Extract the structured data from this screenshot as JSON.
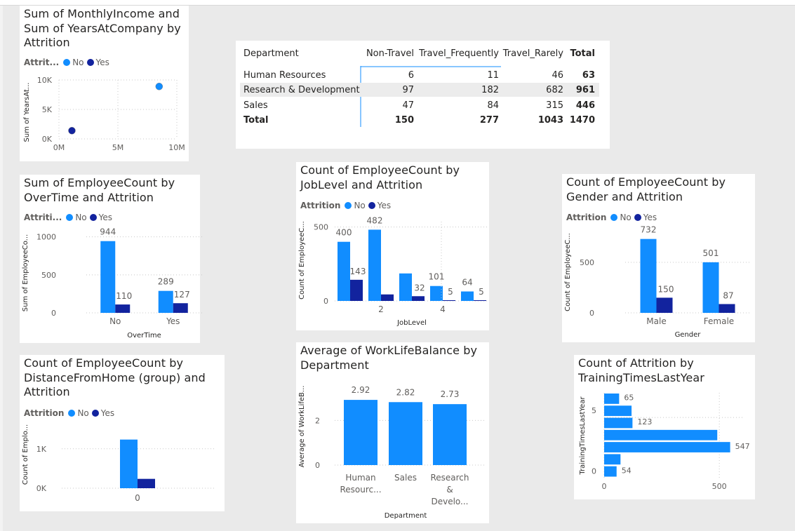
{
  "colors": {
    "no": "#118dff",
    "yes": "#12239e",
    "grid": "#c8c8c8",
    "axis": "#605e5c",
    "dark": "#252423"
  },
  "scatter": {
    "title": "Sum of MonthlyIncome and\nSum of YearsAtCompany by\nAttrition",
    "legend_title": "Attrit...",
    "legend_items": [
      "No",
      "Yes"
    ],
    "y_axis_title": "Sum of YearsAt...",
    "chart_data": {
      "type": "scatter",
      "series": [
        {
          "name": "No",
          "x": [
            8500000
          ],
          "y": [
            8900
          ]
        },
        {
          "name": "Yes",
          "x": [
            1100000
          ],
          "y": [
            1400
          ]
        }
      ],
      "x_ticks": [
        "0M",
        "5M",
        "10M"
      ],
      "y_ticks": [
        "0K",
        "5K",
        "10K"
      ],
      "xlim": [
        0,
        10000000
      ],
      "ylim": [
        0,
        10000
      ]
    }
  },
  "matrix": {
    "headers": [
      "Department",
      "Non-Travel",
      "Travel_Frequently",
      "Travel_Rarely",
      "Total"
    ],
    "rows": [
      [
        "Human Resources",
        "6",
        "11",
        "46",
        "63"
      ],
      [
        "Research & Development",
        "97",
        "182",
        "682",
        "961"
      ],
      [
        "Sales",
        "47",
        "84",
        "315",
        "446"
      ]
    ],
    "total_row": [
      "Total",
      "150",
      "277",
      "1043",
      "1470"
    ]
  },
  "overtime": {
    "title": "Sum of EmployeeCount by\nOverTime and Attrition",
    "legend_title": "Attriti...",
    "legend_items": [
      "No",
      "Yes"
    ],
    "y_axis_title": "Sum of EmployeeCo...",
    "x_axis_title": "OverTime",
    "chart_data": {
      "type": "bar",
      "categories": [
        "No",
        "Yes"
      ],
      "series": [
        {
          "name": "No",
          "values": [
            944,
            289
          ]
        },
        {
          "name": "Yes",
          "values": [
            110,
            127
          ]
        }
      ],
      "y_ticks": [
        0,
        500,
        1000
      ],
      "ylim": [
        0,
        1080
      ]
    }
  },
  "joblevel": {
    "title": "Count of EmployeeCount by\nJobLevel and Attrition",
    "legend_title": "Attrition",
    "legend_items": [
      "No",
      "Yes"
    ],
    "y_axis_title": "Count of EmployeeC...",
    "x_axis_title": "JobLevel",
    "chart_data": {
      "type": "bar",
      "categories": [
        "1",
        "2",
        "3",
        "4",
        "5"
      ],
      "x_tick_labels": [
        "",
        "2",
        "",
        "4",
        ""
      ],
      "series": [
        {
          "name": "No",
          "values": [
            400,
            482,
            186,
            101,
            64
          ]
        },
        {
          "name": "Yes",
          "values": [
            143,
            44,
            32,
            5,
            5
          ]
        }
      ],
      "value_labels": {
        "No": [
          "400",
          "482",
          "",
          "101",
          "64"
        ],
        "Yes": [
          "143",
          "",
          "32",
          "5",
          "5"
        ]
      },
      "y_ticks": [
        0,
        500
      ],
      "ylim": [
        0,
        560
      ]
    }
  },
  "gender": {
    "title": "Count of EmployeeCount by\nGender and Attrition",
    "legend_title": "Attrition",
    "legend_items": [
      "No",
      "Yes"
    ],
    "y_axis_title": "Count of EmployeeC...",
    "x_axis_title": "Gender",
    "chart_data": {
      "type": "bar",
      "categories": [
        "Male",
        "Female"
      ],
      "series": [
        {
          "name": "No",
          "values": [
            732,
            501
          ]
        },
        {
          "name": "Yes",
          "values": [
            150,
            87
          ]
        }
      ],
      "y_ticks": [
        0,
        500
      ],
      "ylim": [
        0,
        820
      ]
    }
  },
  "distance": {
    "title": "Count of EmployeeCount by\nDistanceFromHome (group) and\nAttrition",
    "legend_title": "Attrition",
    "legend_items": [
      "No",
      "Yes"
    ],
    "y_axis_title": "Count of Emplo...",
    "chart_data": {
      "type": "bar",
      "categories": [
        "0"
      ],
      "series": [
        {
          "name": "No",
          "values": [
            1233
          ]
        },
        {
          "name": "Yes",
          "values": [
            237
          ]
        }
      ],
      "y_ticks": [
        "0K",
        "1K"
      ],
      "ylim": [
        0,
        1600
      ]
    }
  },
  "worklife": {
    "title": "Average of WorkLifeBalance by\nDepartment",
    "y_axis_title": "Average of WorkLifeB...",
    "x_axis_title": "Department",
    "chart_data": {
      "type": "bar",
      "categories": [
        "Human Resources",
        "Sales",
        "Research & Development"
      ],
      "category_labels": [
        [
          "Human",
          "Resourc..."
        ],
        [
          "Sales"
        ],
        [
          "Research",
          "&",
          "Develo..."
        ]
      ],
      "values": [
        2.92,
        2.82,
        2.73
      ],
      "value_labels": [
        "2.92",
        "2.82",
        "2.73"
      ],
      "y_ticks": [
        0,
        2
      ],
      "ylim": [
        0,
        3.3
      ]
    }
  },
  "training": {
    "title": "Count of Attrition by\nTrainingTimesLastYear",
    "y_axis_title": "TrainingTimesLastYear",
    "chart_data": {
      "type": "bar",
      "orientation": "horizontal",
      "categories": [
        6,
        5,
        4,
        3,
        2,
        1,
        0
      ],
      "values": [
        65,
        119,
        123,
        491,
        547,
        71,
        54
      ],
      "value_labels": [
        "65",
        "",
        "123",
        "",
        "547",
        "",
        "54"
      ],
      "x_ticks": [
        0,
        500
      ],
      "xlim": [
        0,
        600
      ],
      "y_tick_labels": [
        "",
        "5",
        "",
        "",
        "",
        "",
        "0"
      ]
    }
  }
}
